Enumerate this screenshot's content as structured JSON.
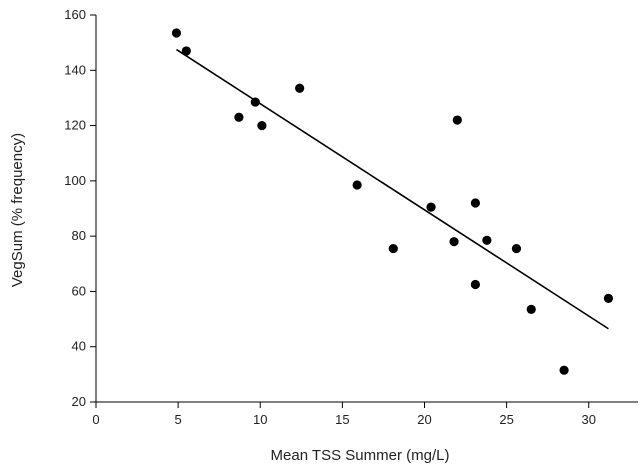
{
  "chart_data": {
    "type": "scatter",
    "xlabel": "Mean TSS Summer (mg/L)",
    "ylabel": "VegSum (% frequency)",
    "xlim": [
      0,
      33
    ],
    "ylim": [
      20,
      160
    ],
    "xticks": [
      0,
      5,
      10,
      15,
      20,
      25,
      30
    ],
    "yticks": [
      20,
      40,
      60,
      80,
      100,
      120,
      140,
      160
    ],
    "grid": false,
    "points": [
      {
        "x": 4.9,
        "y": 153.5
      },
      {
        "x": 5.5,
        "y": 147
      },
      {
        "x": 8.7,
        "y": 123
      },
      {
        "x": 9.7,
        "y": 128.5
      },
      {
        "x": 10.1,
        "y": 120
      },
      {
        "x": 12.4,
        "y": 133.5
      },
      {
        "x": 15.9,
        "y": 98.5
      },
      {
        "x": 18.1,
        "y": 75.5
      },
      {
        "x": 20.4,
        "y": 90.5
      },
      {
        "x": 21.8,
        "y": 78
      },
      {
        "x": 22.0,
        "y": 122
      },
      {
        "x": 23.1,
        "y": 92
      },
      {
        "x": 23.1,
        "y": 62.5
      },
      {
        "x": 23.8,
        "y": 78.5
      },
      {
        "x": 25.6,
        "y": 75.5
      },
      {
        "x": 26.5,
        "y": 53.5
      },
      {
        "x": 28.5,
        "y": 31.5
      },
      {
        "x": 31.2,
        "y": 57.5
      }
    ],
    "trendline": {
      "x": [
        4.9,
        31.2
      ],
      "y": [
        147.5,
        46.5
      ]
    },
    "colors": {
      "marker": "#000000",
      "line": "#000000",
      "axis": "#000000"
    }
  }
}
